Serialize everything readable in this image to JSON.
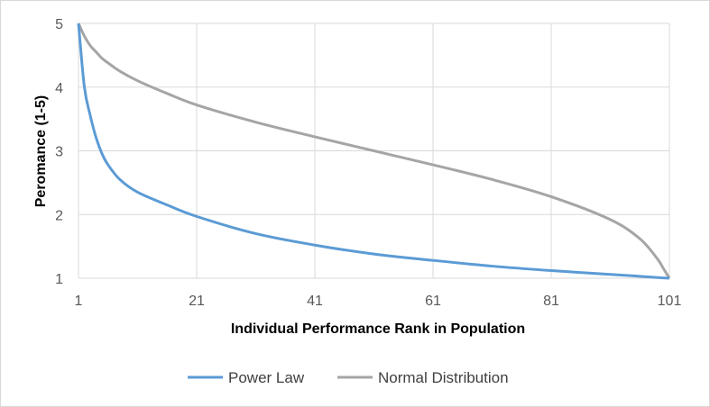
{
  "chart_data": {
    "type": "line",
    "xlabel": "Individual Performance Rank in Population",
    "ylabel": "Peromance (1-5)",
    "xlim": [
      1,
      101
    ],
    "ylim": [
      1,
      5
    ],
    "x_ticks": [
      1,
      21,
      41,
      61,
      81,
      101
    ],
    "y_ticks": [
      1,
      2,
      3,
      4,
      5
    ],
    "grid": true,
    "legend_position": "bottom",
    "x": [
      1,
      2,
      3,
      4,
      5,
      6,
      8,
      11,
      16,
      21,
      31,
      41,
      51,
      61,
      71,
      81,
      91,
      96,
      99,
      100,
      101
    ],
    "series": [
      {
        "name": "Power Law",
        "color": "#5b9bd5",
        "values": [
          5.0,
          4.0,
          3.55,
          3.2,
          2.95,
          2.78,
          2.55,
          2.35,
          2.15,
          1.97,
          1.7,
          1.52,
          1.38,
          1.28,
          1.19,
          1.12,
          1.06,
          1.03,
          1.01,
          1.005,
          1.0
        ]
      },
      {
        "name": "Normal Distribution",
        "color": "#a5a5a5",
        "values": [
          5.0,
          4.8,
          4.65,
          4.55,
          4.45,
          4.38,
          4.25,
          4.1,
          3.9,
          3.72,
          3.45,
          3.22,
          3.0,
          2.78,
          2.55,
          2.28,
          1.92,
          1.62,
          1.3,
          1.15,
          1.0
        ]
      }
    ]
  }
}
